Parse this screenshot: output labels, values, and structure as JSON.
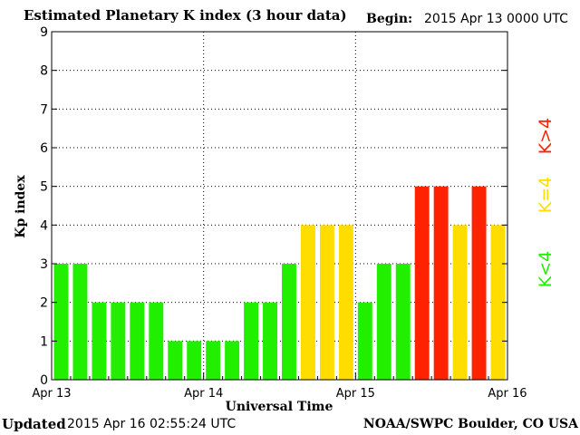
{
  "header": {
    "title": "Estimated Planetary K index (3 hour data)",
    "begin_label": "Begin:",
    "begin_value": "2015 Apr 13 0000 UTC"
  },
  "footer": {
    "updated_label": "Updated",
    "updated_value": "2015 Apr 16 02:55:24 UTC",
    "credit": "NOAA/SWPC Boulder, CO USA"
  },
  "chart_data": {
    "type": "bar",
    "title": "Estimated Planetary K index (3 hour data)",
    "xlabel": "Universal Time",
    "ylabel": "Kp index",
    "ylim": [
      0,
      9
    ],
    "yticks": [
      0,
      1,
      2,
      3,
      4,
      5,
      6,
      7,
      8,
      9
    ],
    "x_tick_labels": [
      "Apr 13",
      "Apr 14",
      "Apr 15",
      "Apr 16"
    ],
    "grid": true,
    "values": [
      3,
      3,
      2,
      2,
      2,
      2,
      1,
      1,
      1,
      1,
      2,
      2,
      3,
      4,
      4,
      4,
      2,
      3,
      3,
      5,
      5,
      4,
      5,
      4
    ],
    "colors": {
      "low": "#22ee00",
      "equal": "#ffdd00",
      "high": "#ff2200"
    },
    "legend": [
      {
        "label": "K<4",
        "color": "#22ee00"
      },
      {
        "label": "K=4",
        "color": "#ffdd00"
      },
      {
        "label": "K>4",
        "color": "#ff2200"
      }
    ],
    "legend_position": "right"
  }
}
